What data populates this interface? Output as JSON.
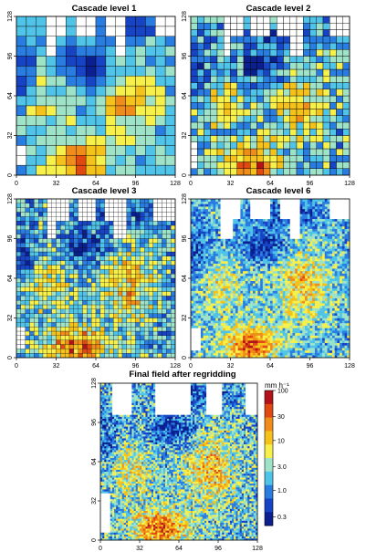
{
  "figure": {
    "panels": [
      {
        "title": "Cascade level 1",
        "grid_cells": 16,
        "seed": 11
      },
      {
        "title": "Cascade level 2",
        "grid_cells": 24,
        "seed": 23
      },
      {
        "title": "Cascade level 3",
        "grid_cells": 36,
        "seed": 37
      },
      {
        "title": "Cascade level 6",
        "grid_cells": 64,
        "seed": 53
      },
      {
        "title": "Final field after regridding",
        "grid_cells": 80,
        "seed": 71
      }
    ],
    "colorbar": {
      "unit_label": "mm h⁻¹",
      "tick_labels": [
        "100",
        "30",
        "10",
        "3.0",
        "1.0",
        "0.3"
      ],
      "tick_values": [
        100,
        30,
        10,
        3,
        1,
        0.3
      ],
      "range": [
        0.2,
        100
      ],
      "scale": "log"
    },
    "colors": {
      "ramp": [
        "#0b1f8f",
        "#1744c4",
        "#2a7de0",
        "#4fc3e8",
        "#9ee3c8",
        "#f7f04a",
        "#f5c21b",
        "#f08c1a",
        "#e04a12",
        "#b3121a"
      ],
      "no_data": "#ffffff",
      "grid_line": "#000000"
    }
  },
  "chart_data": [
    {
      "type": "heatmap",
      "title": "Cascade level 1",
      "xlim": [
        0,
        128
      ],
      "ylim": [
        0,
        128
      ],
      "x_ticks": [
        0,
        32,
        64,
        96,
        128
      ],
      "y_ticks": [
        0,
        32,
        64,
        96,
        128
      ],
      "value_range": [
        0.2,
        100
      ],
      "color_scale": "log"
    },
    {
      "type": "heatmap",
      "title": "Cascade level 2",
      "xlim": [
        0,
        128
      ],
      "ylim": [
        0,
        128
      ],
      "x_ticks": [
        0,
        32,
        64,
        96,
        128
      ],
      "y_ticks": [
        0,
        32,
        64,
        96,
        128
      ],
      "value_range": [
        0.2,
        100
      ],
      "color_scale": "log"
    },
    {
      "type": "heatmap",
      "title": "Cascade level 3",
      "xlim": [
        0,
        128
      ],
      "ylim": [
        0,
        128
      ],
      "x_ticks": [
        0,
        32,
        64,
        96,
        128
      ],
      "y_ticks": [
        0,
        32,
        64,
        96,
        128
      ],
      "value_range": [
        0.2,
        100
      ],
      "color_scale": "log"
    },
    {
      "type": "heatmap",
      "title": "Cascade level 6",
      "xlim": [
        0,
        128
      ],
      "ylim": [
        0,
        128
      ],
      "x_ticks": [
        0,
        32,
        64,
        96,
        128
      ],
      "y_ticks": [
        0,
        32,
        64,
        96,
        128
      ],
      "value_range": [
        0.2,
        100
      ],
      "color_scale": "log"
    },
    {
      "type": "heatmap",
      "title": "Final field after regridding",
      "xlim": [
        0,
        128
      ],
      "ylim": [
        0,
        128
      ],
      "x_ticks": [
        0,
        32,
        64,
        96,
        128
      ],
      "y_ticks": [
        0,
        32,
        64,
        96,
        128
      ],
      "value_range": [
        0.2,
        100
      ],
      "color_scale": "log",
      "colorbar_unit": "mm h⁻¹"
    }
  ]
}
